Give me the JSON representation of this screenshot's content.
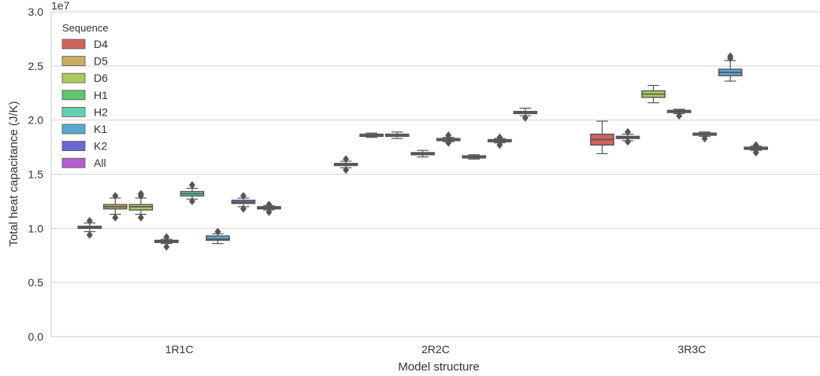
{
  "chart_data": {
    "type": "box",
    "title": "",
    "xlabel": "Model structure",
    "ylabel": "Total heat capacitance (J/K)",
    "y_offset_label": "1e7",
    "ylim": [
      0.0,
      3.0
    ],
    "yticks": [
      "0.0",
      "0.5",
      "1.0",
      "1.5",
      "2.0",
      "2.5",
      "3.0"
    ],
    "categories": [
      "1R1C",
      "2R2C",
      "3R3C"
    ],
    "grid": "horizontal",
    "legend": {
      "title": "Sequence",
      "position": "top-left"
    },
    "series": [
      {
        "name": "D4",
        "color": "#d1655c",
        "boxes": [
          {
            "min": 0.97,
            "q1": 1.0,
            "median": 1.01,
            "q3": 1.02,
            "max": 1.05,
            "outliers": [
              0.94,
              1.07
            ]
          },
          {
            "min": 1.56,
            "q1": 1.58,
            "median": 1.59,
            "q3": 1.6,
            "max": 1.62,
            "outliers": [
              1.54,
              1.64
            ]
          },
          {
            "min": 1.69,
            "q1": 1.77,
            "median": 1.82,
            "q3": 1.87,
            "max": 1.99,
            "outliers": []
          }
        ]
      },
      {
        "name": "D5",
        "color": "#c8ae62",
        "boxes": [
          {
            "min": 1.13,
            "q1": 1.18,
            "median": 1.2,
            "q3": 1.22,
            "max": 1.28,
            "outliers": [
              1.1,
              1.3
            ]
          },
          {
            "min": 1.84,
            "q1": 1.85,
            "median": 1.86,
            "q3": 1.87,
            "max": 1.88,
            "outliers": []
          },
          {
            "min": 1.81,
            "q1": 1.83,
            "median": 1.84,
            "q3": 1.85,
            "max": 1.87,
            "outliers": [
              1.8,
              1.89
            ]
          }
        ]
      },
      {
        "name": "D6",
        "color": "#a9cb5f",
        "boxes": [
          {
            "min": 1.13,
            "q1": 1.17,
            "median": 1.2,
            "q3": 1.22,
            "max": 1.28,
            "outliers": [
              1.1,
              1.3,
              1.32
            ]
          },
          {
            "min": 1.83,
            "q1": 1.85,
            "median": 1.86,
            "q3": 1.87,
            "max": 1.89,
            "outliers": []
          },
          {
            "min": 2.16,
            "q1": 2.21,
            "median": 2.24,
            "q3": 2.27,
            "max": 2.32,
            "outliers": []
          }
        ]
      },
      {
        "name": "H1",
        "color": "#62c46b",
        "boxes": [
          {
            "min": 0.86,
            "q1": 0.87,
            "median": 0.88,
            "q3": 0.89,
            "max": 0.9,
            "outliers": [
              0.83,
              0.92
            ]
          },
          {
            "min": 1.66,
            "q1": 1.68,
            "median": 1.69,
            "q3": 1.7,
            "max": 1.72,
            "outliers": []
          },
          {
            "min": 2.06,
            "q1": 2.07,
            "median": 2.08,
            "q3": 2.09,
            "max": 2.1,
            "outliers": [
              2.04
            ]
          }
        ]
      },
      {
        "name": "H2",
        "color": "#63d0b3",
        "boxes": [
          {
            "min": 1.27,
            "q1": 1.3,
            "median": 1.32,
            "q3": 1.34,
            "max": 1.37,
            "outliers": [
              1.25,
              1.4
            ]
          },
          {
            "min": 1.8,
            "q1": 1.81,
            "median": 1.82,
            "q3": 1.83,
            "max": 1.84,
            "outliers": [
              1.79,
              1.86
            ]
          },
          {
            "min": 1.85,
            "q1": 1.86,
            "median": 1.87,
            "q3": 1.88,
            "max": 1.89,
            "outliers": [
              1.83
            ]
          }
        ]
      },
      {
        "name": "K1",
        "color": "#5aa7d2",
        "boxes": [
          {
            "min": 0.86,
            "q1": 0.89,
            "median": 0.9,
            "q3": 0.93,
            "max": 0.95,
            "outliers": [
              0.97
            ]
          },
          {
            "min": 1.64,
            "q1": 1.65,
            "median": 1.66,
            "q3": 1.67,
            "max": 1.68,
            "outliers": []
          },
          {
            "min": 2.36,
            "q1": 2.41,
            "median": 2.44,
            "q3": 2.47,
            "max": 2.55,
            "outliers": [
              2.57,
              2.59
            ]
          }
        ]
      },
      {
        "name": "K2",
        "color": "#6d67d0",
        "boxes": [
          {
            "min": 1.2,
            "q1": 1.23,
            "median": 1.24,
            "q3": 1.26,
            "max": 1.28,
            "outliers": [
              1.18,
              1.3
            ]
          },
          {
            "min": 1.79,
            "q1": 1.8,
            "median": 1.81,
            "q3": 1.82,
            "max": 1.83,
            "outliers": [
              1.77,
              1.84
            ]
          },
          {
            "min": 1.72,
            "q1": 1.73,
            "median": 1.74,
            "q3": 1.75,
            "max": 1.76,
            "outliers": [
              1.7,
              1.77
            ]
          }
        ]
      },
      {
        "name": "All",
        "color": "#b25fd1",
        "boxes": [
          {
            "min": 1.17,
            "q1": 1.18,
            "median": 1.19,
            "q3": 1.2,
            "max": 1.21,
            "outliers": [
              1.15,
              1.22
            ]
          },
          {
            "min": 2.04,
            "q1": 2.06,
            "median": 2.07,
            "q3": 2.08,
            "max": 2.11,
            "outliers": [
              2.02
            ]
          },
          null
        ]
      }
    ]
  }
}
